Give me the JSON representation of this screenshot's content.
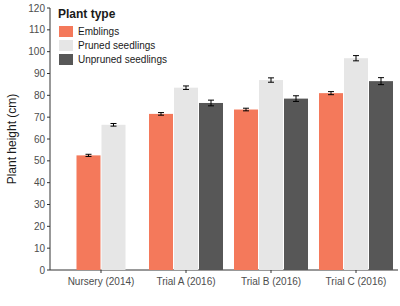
{
  "chart_data": {
    "type": "bar",
    "y_label": "Plant height (cm)",
    "legend_title": "Plant type",
    "legend": "upper left",
    "grid": false,
    "categories": [
      "Nursery (2014)",
      "Trial A (2016)",
      "Trial B (2016)",
      "Trial C (2016)"
    ],
    "series": [
      {
        "name": "Emblings",
        "color": "#f4795b",
        "values": [
          52.5,
          71.5,
          73.5,
          81
        ],
        "errors": [
          0.5,
          0.6,
          0.6,
          0.7
        ]
      },
      {
        "name": "Pruned seedlings",
        "color": "#e6e6e6",
        "values": [
          66.5,
          83.5,
          87,
          97
        ],
        "errors": [
          0.6,
          0.8,
          1.0,
          1.2
        ]
      },
      {
        "name": "Unpruned seedlings",
        "color": "#575757",
        "values": [
          null,
          76.5,
          78.5,
          86.5
        ],
        "errors": [
          null,
          1.3,
          1.3,
          1.6
        ]
      }
    ],
    "ylim": [
      0,
      120
    ],
    "yticks": [
      0,
      10,
      20,
      30,
      40,
      50,
      60,
      70,
      80,
      90,
      100,
      110,
      120
    ]
  }
}
